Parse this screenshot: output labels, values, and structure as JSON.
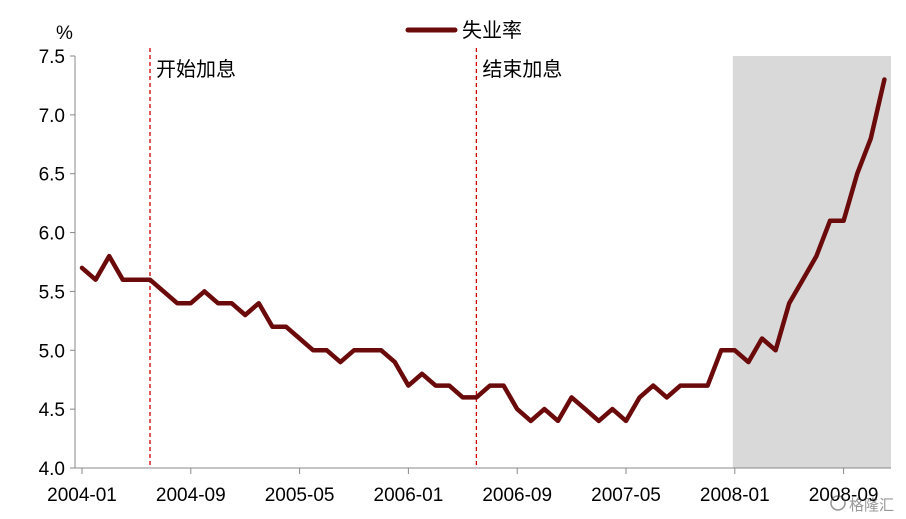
{
  "chart_data": {
    "type": "line",
    "ylabel": "%",
    "ylim": [
      4.0,
      7.5
    ],
    "yticks": [
      "4.0",
      "4.5",
      "5.0",
      "5.5",
      "6.0",
      "6.5",
      "7.0",
      "7.5"
    ],
    "xticks": [
      "2004-01",
      "2004-09",
      "2005-05",
      "2006-01",
      "2006-09",
      "2007-05",
      "2008-01",
      "2008-09"
    ],
    "grid": false,
    "legend_position": "top-center",
    "series": [
      {
        "name": "失业率",
        "color": "#6b0a0a",
        "x_start": "2004-01",
        "values": [
          5.7,
          5.6,
          5.8,
          5.6,
          5.6,
          5.6,
          5.5,
          5.4,
          5.4,
          5.5,
          5.4,
          5.4,
          5.3,
          5.4,
          5.2,
          5.2,
          5.1,
          5.0,
          5.0,
          4.9,
          5.0,
          5.0,
          5.0,
          4.9,
          4.7,
          4.8,
          4.7,
          4.7,
          4.6,
          4.6,
          4.7,
          4.7,
          4.5,
          4.4,
          4.5,
          4.4,
          4.6,
          4.5,
          4.4,
          4.5,
          4.4,
          4.6,
          4.7,
          4.6,
          4.7,
          4.7,
          4.7,
          5.0,
          5.0,
          4.9,
          5.1,
          5.0,
          5.4,
          5.6,
          5.8,
          6.1,
          6.1,
          6.5,
          6.8,
          7.3
        ]
      }
    ],
    "annotations": [
      {
        "label": "开始加息",
        "x": "2004-06",
        "style": "dashed",
        "color": "#cc0000"
      },
      {
        "label": "结束加息",
        "x": "2006-06",
        "style": "dashed",
        "color": "#cc0000"
      }
    ],
    "shaded_region": {
      "from": "2008-01",
      "to": "2008-12",
      "color": "#d9d9d9"
    }
  },
  "watermark": "格隆汇"
}
